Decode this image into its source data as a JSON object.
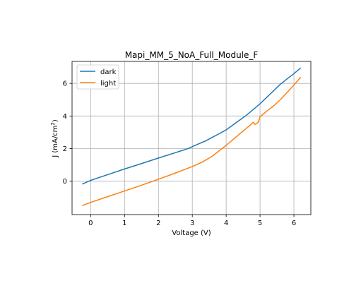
{
  "chart_data": {
    "type": "line",
    "title": "Mapi_MM_5_NoA_Full_Module_F",
    "xlabel": "Voltage (V)",
    "ylabel_main": "J (mA/cm",
    "ylabel_sup": "2",
    "ylabel_end": ")",
    "xlim": [
      -0.55,
      6.5
    ],
    "ylim": [
      -2.05,
      7.35
    ],
    "xticks": [
      0,
      1,
      2,
      3,
      4,
      5,
      6
    ],
    "yticks": [
      0,
      2,
      4,
      6
    ],
    "grid": true,
    "legend_position": "upper-left",
    "series": [
      {
        "name": "dark",
        "color": "#1f77b4",
        "x": [
          -0.25,
          0.0,
          0.5,
          1.0,
          1.5,
          2.0,
          2.5,
          2.9,
          3.0,
          3.2,
          3.4,
          3.6,
          3.8,
          4.0,
          4.2,
          4.4,
          4.6,
          4.8,
          5.0,
          5.2,
          5.4,
          5.6,
          5.8,
          6.0,
          6.2
        ],
        "y": [
          -0.18,
          0.05,
          0.4,
          0.75,
          1.08,
          1.42,
          1.75,
          2.02,
          2.12,
          2.3,
          2.48,
          2.7,
          2.92,
          3.15,
          3.45,
          3.75,
          4.05,
          4.4,
          4.75,
          5.15,
          5.55,
          5.95,
          6.28,
          6.6,
          6.95
        ]
      },
      {
        "name": "light",
        "color": "#ff7f0e",
        "x": [
          -0.25,
          0.0,
          0.5,
          1.0,
          1.5,
          2.0,
          2.5,
          3.0,
          3.3,
          3.6,
          4.0,
          4.4,
          4.7,
          4.8,
          4.85,
          4.95,
          5.0,
          5.2,
          5.4,
          5.6,
          5.8,
          6.0,
          6.2
        ],
        "y": [
          -1.5,
          -1.3,
          -0.95,
          -0.6,
          -0.25,
          0.12,
          0.5,
          0.9,
          1.18,
          1.55,
          2.2,
          2.9,
          3.42,
          3.62,
          3.48,
          3.62,
          3.95,
          4.3,
          4.62,
          5.0,
          5.45,
          5.9,
          6.38
        ]
      }
    ]
  }
}
